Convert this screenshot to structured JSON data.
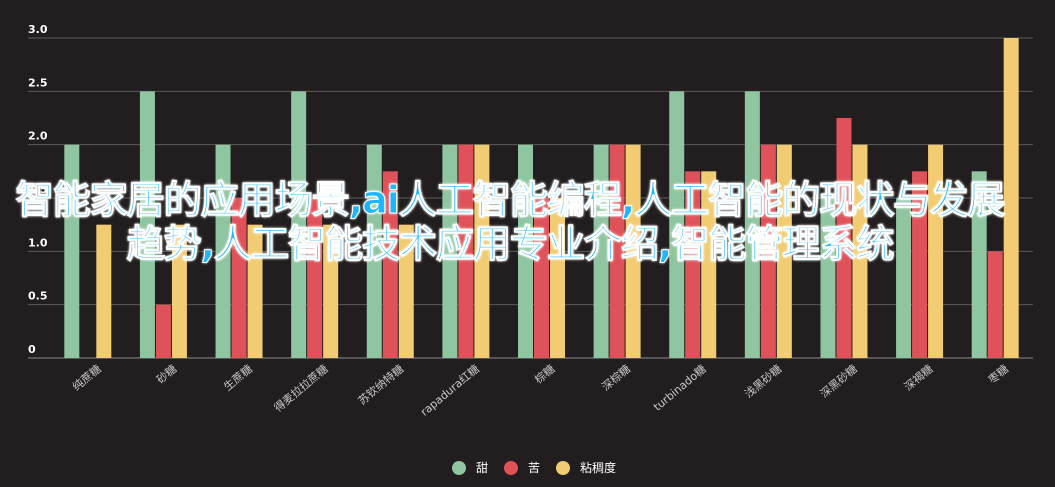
{
  "overlay_text": "智能家居的应用场景,ai人工智能编程,人工智能的现状与发展趋势,人工智能技术应用专业介绍,智能管理系统",
  "colors": {
    "background": "#221e1f",
    "series": [
      "#8fc5a0",
      "#e0525a",
      "#f1cc72"
    ],
    "grid": "#5a5a5a",
    "overlay": "#1fb6ff"
  },
  "chart_data": {
    "type": "bar",
    "title": "",
    "xlabel": "",
    "ylabel": "",
    "ylim": [
      0,
      3.0
    ],
    "yticks": [
      "0",
      "0.5",
      "1.0",
      "1.5",
      "2.0",
      "2.5",
      "3.0"
    ],
    "grid": true,
    "legend_position": "bottom",
    "categories": [
      "纯蔗糖",
      "砂糖",
      "生蔗糖",
      "得麦拉拉蔗糖",
      "苏钦纳特糖",
      "rapadura红糖",
      "棕糖",
      "深棕糖",
      "turbinado糖",
      "浅黑砂糖",
      "深黑砂糖",
      "深褐糖",
      "枣糖"
    ],
    "series": [
      {
        "name": "甜",
        "values": [
          2.0,
          2.5,
          2.0,
          2.5,
          2.0,
          2.0,
          2.0,
          2.0,
          2.5,
          2.5,
          1.5,
          1.5,
          1.75
        ]
      },
      {
        "name": "苦",
        "values": [
          0,
          0.5,
          1.5,
          1.5,
          1.75,
          2.0,
          1.5,
          2.0,
          1.75,
          2.0,
          2.25,
          1.75,
          1.0
        ]
      },
      {
        "name": "粘稠度",
        "values": [
          1.25,
          1.25,
          1.25,
          1.25,
          1.25,
          2.0,
          1.5,
          2.0,
          1.75,
          2.0,
          2.0,
          2.0,
          3.0
        ]
      }
    ]
  }
}
